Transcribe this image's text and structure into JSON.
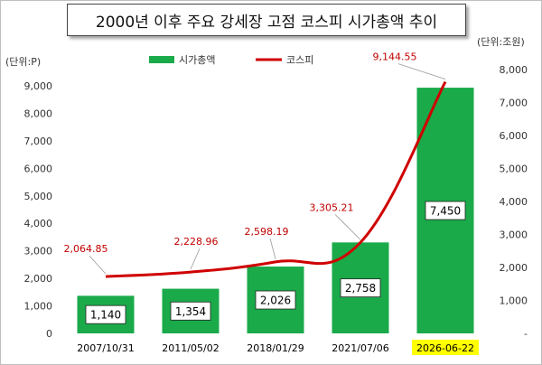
{
  "title": "2000년 이후 주요 강세장 고점 코스피 시가총액 추이",
  "chart_data": {
    "type": "bar+line",
    "title": "2000년 이후 주요 강세장 고점 코스피 시가총액 추이",
    "categories": [
      "2007/10/31",
      "2011/05/02",
      "2018/01/29",
      "2021/07/06",
      "2026-06-22"
    ],
    "highlight_category_color": "#ffff00",
    "left_axis": {
      "unit_label": "(단위:P)",
      "ylim": [
        0,
        9000
      ],
      "ticks": [
        "0",
        "1,000",
        "2,000",
        "3,000",
        "4,000",
        "5,000",
        "6,000",
        "7,000",
        "8,000",
        "9,000"
      ],
      "tick_values": [
        0,
        1000,
        2000,
        3000,
        4000,
        5000,
        6000,
        7000,
        8000,
        9000
      ]
    },
    "right_axis": {
      "unit_label": "(단위:조원)",
      "ylim": [
        0,
        8000
      ],
      "ticks": [
        "-",
        "1,000",
        "2,000",
        "3,000",
        "4,000",
        "5,000",
        "6,000",
        "7,000",
        "8,000"
      ],
      "tick_values": [
        0,
        1000,
        2000,
        3000,
        4000,
        5000,
        6000,
        7000,
        8000
      ]
    },
    "series": [
      {
        "name": "시가총액",
        "type": "bar",
        "axis": "right",
        "color": "#1aaa4a",
        "values": [
          1140,
          1354,
          2026,
          2758,
          7450
        ],
        "labels": [
          "1,140",
          "1,354",
          "2,026",
          "2,758",
          "7,450"
        ]
      },
      {
        "name": "코스피",
        "type": "line",
        "axis": "left",
        "color": "#d00000",
        "values": [
          2064.85,
          2228.96,
          2598.19,
          3305.21,
          9144.55
        ],
        "labels": [
          "2,064.85",
          "2,228.96",
          "2,598.19",
          "3,305.21",
          "9,144.55"
        ]
      }
    ],
    "grid": false,
    "legend_position": "top"
  }
}
